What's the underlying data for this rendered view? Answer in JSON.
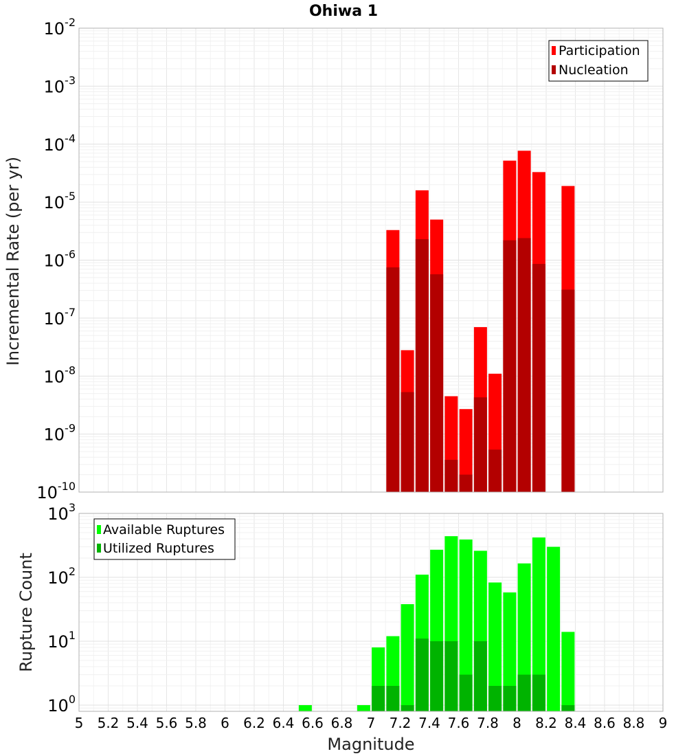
{
  "chart_data": [
    {
      "type": "bar",
      "title": "Ohiwa 1",
      "ylabel": "Incremental Rate (per yr)",
      "yscale": "log",
      "ylim": [
        1e-10,
        0.01
      ],
      "yticks": [
        {
          "base": "10",
          "exp": "-10"
        },
        {
          "base": "10",
          "exp": "-9"
        },
        {
          "base": "10",
          "exp": "-8"
        },
        {
          "base": "10",
          "exp": "-7"
        },
        {
          "base": "10",
          "exp": "-6"
        },
        {
          "base": "10",
          "exp": "-5"
        },
        {
          "base": "10",
          "exp": "-4"
        },
        {
          "base": "10",
          "exp": "-3"
        },
        {
          "base": "10",
          "exp": "-2"
        }
      ],
      "grid": true,
      "legend_position": "top-right",
      "x": [
        7.15,
        7.25,
        7.35,
        7.45,
        7.55,
        7.65,
        7.75,
        7.85,
        7.95,
        8.05,
        8.15,
        8.35
      ],
      "series": [
        {
          "name": "Participation",
          "color": "#ff0000",
          "values": [
            3.3e-06,
            2.8e-08,
            1.6e-05,
            5e-06,
            4.5e-09,
            2.7e-09,
            7e-08,
            1.1e-08,
            5.2e-05,
            7.7e-05,
            3.3e-05,
            1.9e-05
          ]
        },
        {
          "name": "Nucleation",
          "color": "#b30000",
          "values": [
            7.5e-07,
            5.3e-09,
            2.3e-06,
            5.7e-07,
            3.6e-10,
            2e-10,
            4.3e-09,
            5.4e-10,
            2.2e-06,
            2.4e-06,
            8.6e-07,
            3.1e-07
          ]
        }
      ]
    },
    {
      "type": "bar",
      "xlabel": "Magnitude",
      "ylabel": "Rupture Count",
      "yscale": "log",
      "ylim": [
        0.8,
        1000
      ],
      "yticks": [
        {
          "base": "10",
          "exp": "0"
        },
        {
          "base": "10",
          "exp": "1"
        },
        {
          "base": "10",
          "exp": "2"
        },
        {
          "base": "10",
          "exp": "3"
        }
      ],
      "xlim": [
        5,
        9
      ],
      "xticks": [
        "5",
        "5.2",
        "5.4",
        "5.6",
        "5.8",
        "6",
        "6.2",
        "6.4",
        "6.6",
        "6.8",
        "7",
        "7.2",
        "7.4",
        "7.6",
        "7.8",
        "8",
        "8.2",
        "8.4",
        "8.6",
        "8.8",
        "9"
      ],
      "grid": true,
      "legend_position": "top-left",
      "x": [
        6.55,
        6.95,
        7.05,
        7.15,
        7.25,
        7.35,
        7.45,
        7.55,
        7.65,
        7.75,
        7.85,
        7.95,
        8.05,
        8.15,
        8.25,
        8.35
      ],
      "series": [
        {
          "name": "Available Ruptures",
          "color": "#00ff00",
          "values": [
            1,
            1,
            8,
            12,
            38,
            110,
            270,
            440,
            390,
            260,
            83,
            58,
            165,
            420,
            300,
            14
          ]
        },
        {
          "name": "Utilized Ruptures",
          "color": "#00b300",
          "values": [
            0,
            0,
            2,
            2,
            1,
            11,
            10,
            10,
            3,
            10,
            2,
            2,
            3,
            3,
            0,
            1
          ]
        }
      ]
    }
  ]
}
